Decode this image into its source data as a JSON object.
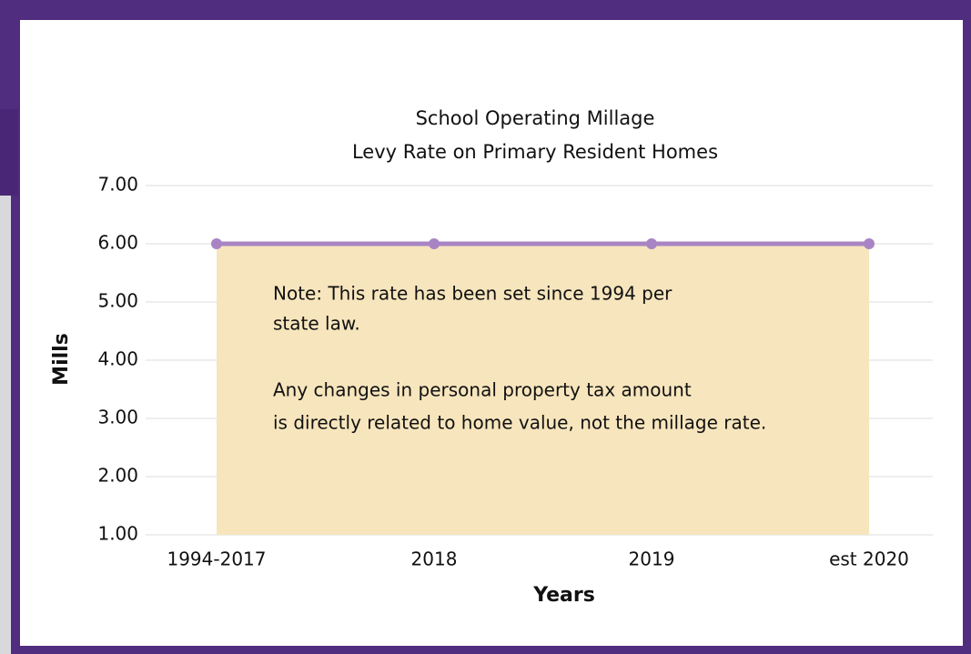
{
  "chart_data": {
    "type": "area",
    "title": "School Operating Millage",
    "subtitle": "Levy Rate on Primary Resident Homes",
    "x_label": "Years",
    "y_label": "Mills",
    "categories": [
      "1994-2017",
      "2018",
      "2019",
      "est 2020"
    ],
    "series": [
      {
        "name": "Mills",
        "color": "#a984c4",
        "fill": "#f7e5bd",
        "values": [
          6,
          6,
          6,
          6
        ]
      }
    ],
    "ylim": [
      1,
      7
    ],
    "yticks": [
      {
        "value": 1,
        "label": "1.00"
      },
      {
        "value": 2,
        "label": "2.00"
      },
      {
        "value": 3,
        "label": "3.00"
      },
      {
        "value": 4,
        "label": "4.00"
      },
      {
        "value": 5,
        "label": "5.00"
      },
      {
        "value": 6,
        "label": "6.00"
      },
      {
        "value": 7,
        "label": "7.00"
      }
    ],
    "grid": true,
    "annotations": [
      "Note: This rate has been set since 1994 per",
      "state law.",
      "Any changes in personal property tax amount",
      "is directly related to home value, not the millage rate."
    ]
  }
}
